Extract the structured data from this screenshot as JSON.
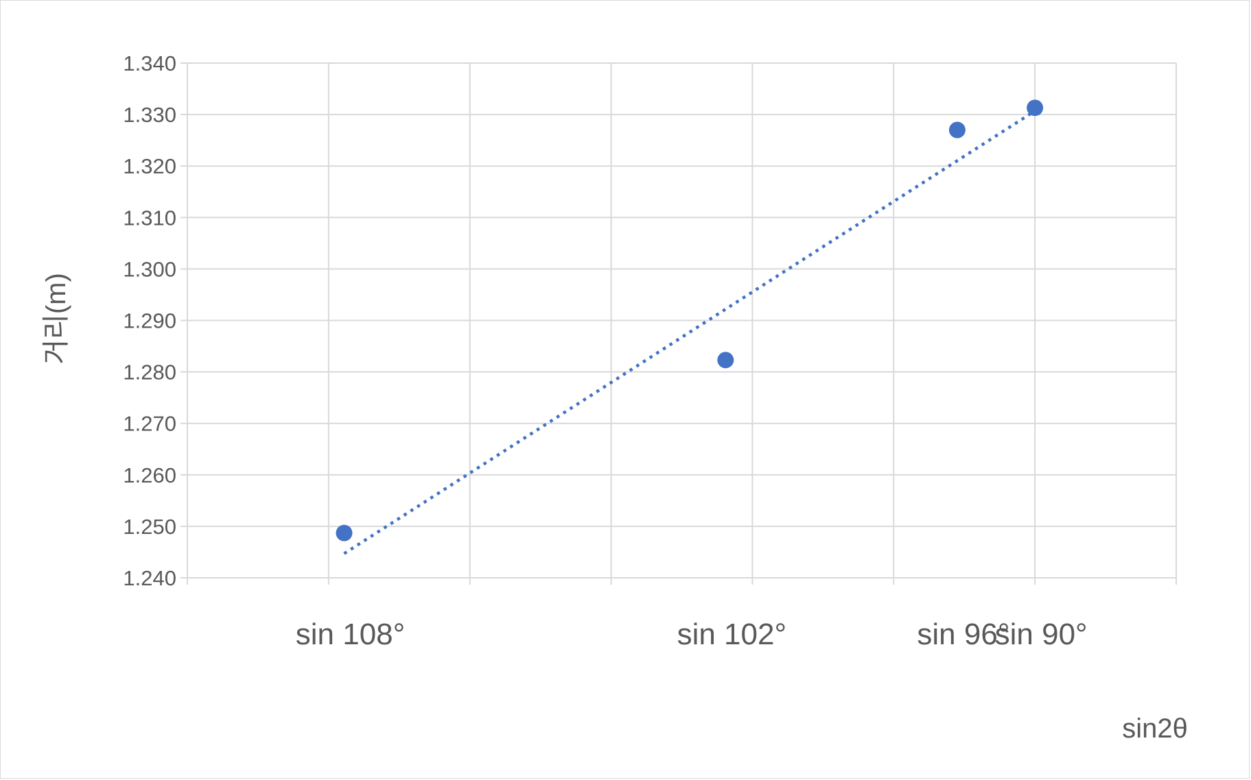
{
  "chart_data": {
    "type": "scatter",
    "xlabel": "sin2θ",
    "ylabel": "거리(m)",
    "ylim": [
      1.24,
      1.34
    ],
    "y_ticks": [
      "1.240",
      "1.250",
      "1.260",
      "1.270",
      "1.280",
      "1.290",
      "1.300",
      "1.310",
      "1.320",
      "1.330",
      "1.340"
    ],
    "xlim": [
      0.94,
      1.01
    ],
    "x_gridlines": [
      0.95,
      0.96,
      0.97,
      0.98,
      0.99,
      1.0
    ],
    "x_tick_labels": [
      {
        "label": "sin 108°",
        "x": 0.9511
      },
      {
        "label": "sin 102°",
        "x": 0.9781
      },
      {
        "label": "sin 96°",
        "x": 0.9945
      },
      {
        "label": "sin 90°",
        "x": 1.0
      }
    ],
    "series": [
      {
        "color": "#4472c4",
        "points": [
          {
            "x": 0.9511,
            "y": 1.2487
          },
          {
            "x": 0.9781,
            "y": 1.2823
          },
          {
            "x": 0.9945,
            "y": 1.327
          },
          {
            "x": 1.0,
            "y": 1.3313
          }
        ]
      }
    ],
    "trendline": {
      "type": "linear",
      "style": "dotted",
      "color": "#4472c4",
      "from": {
        "x": 0.9511,
        "y": 1.2447
      },
      "to": {
        "x": 1.0,
        "y": 1.3307
      }
    },
    "grid": true,
    "legend": "none"
  }
}
